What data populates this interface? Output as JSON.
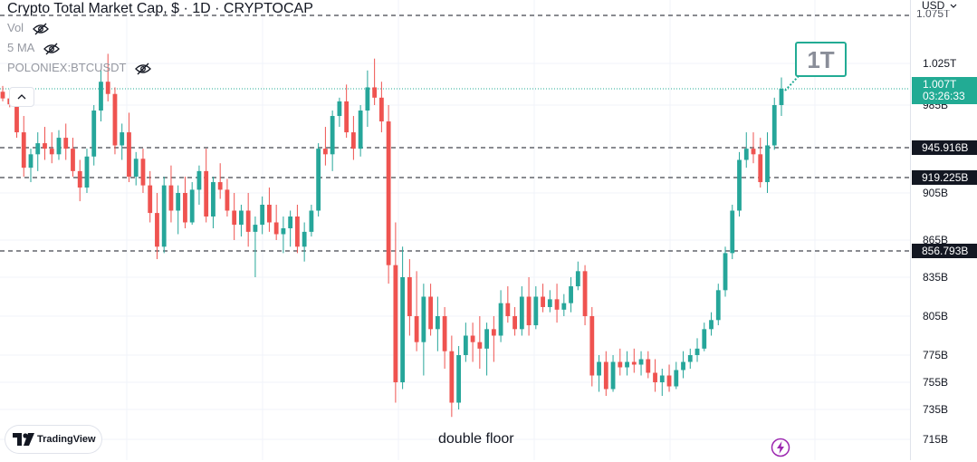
{
  "legend": {
    "title": "Crypto Total Market Cap, $ · 1D · CRYPTOCAP",
    "indicators": [
      "Vol",
      "5 MA",
      "POLONIEX:BTCUSDT"
    ]
  },
  "price_axis": {
    "currency": "USD",
    "top_clipped_label": "1.075T"
  },
  "watermark": {
    "brand": "TradingView"
  },
  "bottom_text": "double floor",
  "annotation": {
    "text": "1T"
  },
  "colors": {
    "up": "#26a69a",
    "down": "#ef5350",
    "accent": "#22ab94",
    "tag_dark": "#131722"
  },
  "chart_data": {
    "type": "candlestick",
    "title": "Crypto Total Market Cap, $ · 1D · CRYPTOCAP",
    "xlabel": "",
    "ylabel": "",
    "ylim": [
      710,
      1080
    ],
    "grid": true,
    "y_ticks": [
      "1.025T",
      "985B",
      "905B",
      "865B",
      "835B",
      "805B",
      "775B",
      "755B",
      "735B",
      "715B"
    ],
    "y_tick_values": [
      1025,
      985,
      905,
      865,
      835,
      805,
      775,
      755,
      735,
      715
    ],
    "current_price": {
      "label": "1.007T",
      "countdown": "03:26:33",
      "value": 1007
    },
    "horizontal_levels": [
      {
        "label": "945.916B",
        "value": 945.916
      },
      {
        "label": "919.225B",
        "value": 919.225
      },
      {
        "label": "856.793B",
        "value": 856.793
      }
    ],
    "annotations": [
      "double floor",
      "1T"
    ],
    "candles": [
      [
        1003,
        1009,
        990,
        994
      ],
      [
        994,
        1000,
        983,
        986
      ],
      [
        986,
        990,
        955,
        960
      ],
      [
        960,
        975,
        920,
        928
      ],
      [
        928,
        945,
        915,
        940
      ],
      [
        940,
        960,
        925,
        950
      ],
      [
        950,
        965,
        935,
        945
      ],
      [
        945,
        960,
        932,
        940
      ],
      [
        940,
        962,
        935,
        955
      ],
      [
        955,
        968,
        935,
        945
      ],
      [
        945,
        955,
        920,
        925
      ],
      [
        925,
        935,
        898,
        910
      ],
      [
        910,
        945,
        905,
        938
      ],
      [
        938,
        985,
        930,
        980
      ],
      [
        980,
        1020,
        970,
        1012
      ],
      [
        1012,
        1035,
        990,
        1000
      ],
      [
        1000,
        1008,
        940,
        948
      ],
      [
        948,
        968,
        935,
        960
      ],
      [
        960,
        978,
        915,
        920
      ],
      [
        920,
        942,
        912,
        936
      ],
      [
        936,
        945,
        905,
        912
      ],
      [
        912,
        925,
        880,
        888
      ],
      [
        888,
        905,
        850,
        860
      ],
      [
        860,
        920,
        855,
        912
      ],
      [
        912,
        930,
        880,
        890
      ],
      [
        890,
        912,
        870,
        905
      ],
      [
        905,
        920,
        875,
        880
      ],
      [
        880,
        915,
        878,
        908
      ],
      [
        908,
        930,
        895,
        925
      ],
      [
        925,
        945,
        880,
        885
      ],
      [
        885,
        920,
        875,
        915
      ],
      [
        915,
        932,
        900,
        908
      ],
      [
        908,
        918,
        885,
        890
      ],
      [
        890,
        905,
        865,
        878
      ],
      [
        878,
        895,
        868,
        890
      ],
      [
        890,
        905,
        860,
        872
      ],
      [
        872,
        885,
        835,
        878
      ],
      [
        878,
        902,
        870,
        895
      ],
      [
        895,
        910,
        872,
        880
      ],
      [
        880,
        895,
        865,
        870
      ],
      [
        870,
        885,
        855,
        875
      ],
      [
        875,
        890,
        860,
        885
      ],
      [
        885,
        895,
        855,
        860
      ],
      [
        860,
        880,
        848,
        872
      ],
      [
        872,
        895,
        868,
        890
      ],
      [
        890,
        950,
        885,
        945
      ],
      [
        945,
        965,
        930,
        940
      ],
      [
        940,
        980,
        925,
        975
      ],
      [
        975,
        995,
        965,
        990
      ],
      [
        990,
        1010,
        955,
        960
      ],
      [
        960,
        975,
        935,
        945
      ],
      [
        945,
        985,
        938,
        980
      ],
      [
        980,
        1020,
        965,
        1008
      ],
      [
        1008,
        1030,
        985,
        995
      ],
      [
        995,
        1012,
        960,
        970
      ],
      [
        970,
        985,
        830,
        845
      ],
      [
        845,
        880,
        740,
        755
      ],
      [
        755,
        860,
        750,
        835
      ],
      [
        835,
        850,
        790,
        805
      ],
      [
        805,
        840,
        778,
        785
      ],
      [
        785,
        830,
        760,
        820
      ],
      [
        820,
        830,
        790,
        795
      ],
      [
        795,
        820,
        778,
        805
      ],
      [
        805,
        812,
        765,
        778
      ],
      [
        778,
        790,
        730,
        740
      ],
      [
        740,
        782,
        735,
        775
      ],
      [
        775,
        800,
        770,
        790
      ],
      [
        790,
        800,
        770,
        785
      ],
      [
        785,
        805,
        765,
        780
      ],
      [
        780,
        800,
        760,
        795
      ],
      [
        795,
        805,
        770,
        790
      ],
      [
        790,
        825,
        785,
        815
      ],
      [
        815,
        828,
        800,
        805
      ],
      [
        805,
        812,
        790,
        795
      ],
      [
        795,
        828,
        790,
        820
      ],
      [
        820,
        835,
        790,
        798
      ],
      [
        798,
        828,
        795,
        820
      ],
      [
        820,
        830,
        808,
        812
      ],
      [
        812,
        825,
        808,
        818
      ],
      [
        818,
        830,
        800,
        810
      ],
      [
        810,
        822,
        805,
        815
      ],
      [
        815,
        835,
        808,
        828
      ],
      [
        828,
        848,
        825,
        840
      ],
      [
        840,
        845,
        798,
        805
      ],
      [
        805,
        812,
        752,
        760
      ],
      [
        760,
        775,
        748,
        770
      ],
      [
        770,
        778,
        745,
        750
      ],
      [
        750,
        775,
        748,
        770
      ],
      [
        770,
        780,
        760,
        766
      ],
      [
        766,
        778,
        760,
        770
      ],
      [
        770,
        780,
        762,
        768
      ],
      [
        768,
        778,
        760,
        772
      ],
      [
        772,
        778,
        758,
        762
      ],
      [
        762,
        772,
        748,
        755
      ],
      [
        755,
        765,
        745,
        760
      ],
      [
        760,
        768,
        748,
        752
      ],
      [
        752,
        770,
        750,
        764
      ],
      [
        764,
        778,
        758,
        770
      ],
      [
        770,
        780,
        765,
        775
      ],
      [
        775,
        788,
        770,
        780
      ],
      [
        780,
        800,
        778,
        795
      ],
      [
        795,
        808,
        790,
        802
      ],
      [
        802,
        830,
        798,
        825
      ],
      [
        825,
        860,
        820,
        855
      ],
      [
        855,
        895,
        850,
        890
      ],
      [
        890,
        942,
        885,
        935
      ],
      [
        935,
        960,
        928,
        945
      ],
      [
        945,
        960,
        932,
        940
      ],
      [
        940,
        955,
        910,
        915
      ],
      [
        915,
        960,
        905,
        948
      ],
      [
        948,
        995,
        944,
        985
      ],
      [
        985,
        1015,
        975,
        1007
      ]
    ]
  }
}
